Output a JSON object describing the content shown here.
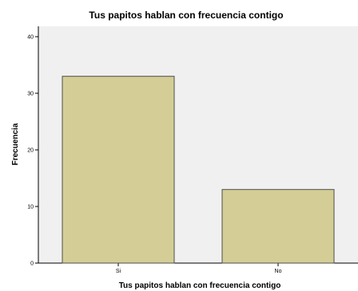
{
  "chart_data": {
    "type": "bar",
    "title": "Tus papitos hablan con frecuencia contigo",
    "xlabel": "Tus papitos hablan con frecuencia contigo",
    "ylabel": "Frecuencia",
    "categories": [
      "Si",
      "No"
    ],
    "values": [
      33,
      13
    ],
    "ylim": [
      0,
      40
    ],
    "yticks": [
      "0",
      "10",
      "20",
      "30",
      "40"
    ],
    "grid": false,
    "legend": "none",
    "colors": {
      "plot_background": "#f0f0f0",
      "bar_fill": "#d4ce96",
      "bar_stroke": "#4d4d4d"
    }
  }
}
